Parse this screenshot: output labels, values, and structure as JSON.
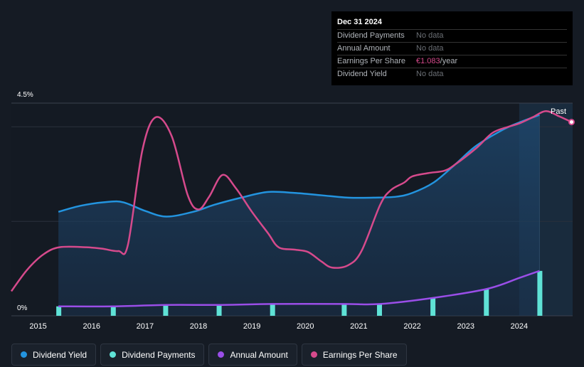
{
  "chart_data": {
    "type": "line",
    "title": "",
    "y_axis": {
      "max_label": "4.5%",
      "min_label": "0%",
      "ylim": [
        0,
        4.5
      ]
    },
    "x_ticks": [
      "2015",
      "2016",
      "2017",
      "2018",
      "2019",
      "2020",
      "2021",
      "2022",
      "2023",
      "2024"
    ],
    "xlim": [
      2014.5,
      2025.0
    ],
    "past_label": "Past",
    "past_start": 2024.0,
    "forecast_start": 2024.38,
    "series": [
      {
        "name": "Dividend Yield",
        "color": "#2394df",
        "kind": "area",
        "points": [
          [
            2015.38,
            2.2
          ],
          [
            2015.8,
            2.33
          ],
          [
            2016.3,
            2.41
          ],
          [
            2016.6,
            2.4
          ],
          [
            2017.0,
            2.22
          ],
          [
            2017.4,
            2.1
          ],
          [
            2017.9,
            2.2
          ],
          [
            2018.3,
            2.35
          ],
          [
            2018.8,
            2.5
          ],
          [
            2019.3,
            2.62
          ],
          [
            2019.8,
            2.6
          ],
          [
            2020.3,
            2.55
          ],
          [
            2020.8,
            2.5
          ],
          [
            2021.3,
            2.5
          ],
          [
            2021.7,
            2.52
          ],
          [
            2022.0,
            2.6
          ],
          [
            2022.4,
            2.82
          ],
          [
            2022.8,
            3.2
          ],
          [
            2023.2,
            3.6
          ],
          [
            2023.7,
            3.94
          ],
          [
            2024.0,
            4.09
          ],
          [
            2024.38,
            4.25
          ]
        ]
      },
      {
        "name": "Earnings Per Share",
        "color": "#d64a8c",
        "kind": "line",
        "points": [
          [
            2014.5,
            0.52
          ],
          [
            2014.8,
            0.98
          ],
          [
            2015.1,
            1.3
          ],
          [
            2015.4,
            1.45
          ],
          [
            2015.9,
            1.45
          ],
          [
            2016.2,
            1.42
          ],
          [
            2016.5,
            1.37
          ],
          [
            2016.68,
            1.5
          ],
          [
            2016.95,
            3.5
          ],
          [
            2017.2,
            4.2
          ],
          [
            2017.5,
            3.8
          ],
          [
            2017.8,
            2.55
          ],
          [
            2018.0,
            2.25
          ],
          [
            2018.2,
            2.52
          ],
          [
            2018.45,
            2.98
          ],
          [
            2018.7,
            2.7
          ],
          [
            2019.0,
            2.2
          ],
          [
            2019.3,
            1.75
          ],
          [
            2019.5,
            1.45
          ],
          [
            2019.8,
            1.4
          ],
          [
            2020.05,
            1.35
          ],
          [
            2020.3,
            1.15
          ],
          [
            2020.5,
            1.02
          ],
          [
            2020.8,
            1.07
          ],
          [
            2021.05,
            1.37
          ],
          [
            2021.4,
            2.35
          ],
          [
            2021.6,
            2.66
          ],
          [
            2021.85,
            2.82
          ],
          [
            2022.0,
            2.95
          ],
          [
            2022.3,
            3.02
          ],
          [
            2022.6,
            3.07
          ],
          [
            2022.8,
            3.2
          ],
          [
            2023.2,
            3.55
          ],
          [
            2023.5,
            3.87
          ],
          [
            2023.8,
            4.0
          ],
          [
            2024.0,
            4.07
          ],
          [
            2024.25,
            4.2
          ],
          [
            2024.5,
            4.33
          ],
          [
            2024.75,
            4.22
          ],
          [
            2024.98,
            4.1
          ]
        ]
      },
      {
        "name": "Annual Amount",
        "color": "#9a4ee8",
        "kind": "line",
        "points": [
          [
            2015.38,
            0.2
          ],
          [
            2016.4,
            0.2
          ],
          [
            2017.4,
            0.23
          ],
          [
            2018.4,
            0.23
          ],
          [
            2019.4,
            0.25
          ],
          [
            2020.7,
            0.25
          ],
          [
            2021.4,
            0.25
          ],
          [
            2022.4,
            0.38
          ],
          [
            2023.4,
            0.57
          ],
          [
            2024.0,
            0.8
          ],
          [
            2024.38,
            0.95
          ]
        ]
      },
      {
        "name": "Dividend Payments",
        "color": "#5fe2d6",
        "kind": "bar",
        "points": [
          [
            2015.38,
            0.2
          ],
          [
            2016.4,
            0.2
          ],
          [
            2017.38,
            0.23
          ],
          [
            2018.38,
            0.23
          ],
          [
            2019.38,
            0.25
          ],
          [
            2020.72,
            0.25
          ],
          [
            2021.38,
            0.25
          ],
          [
            2022.38,
            0.38
          ],
          [
            2023.38,
            0.57
          ],
          [
            2024.38,
            0.95
          ]
        ]
      }
    ]
  },
  "tooltip": {
    "date": "Dec 31 2024",
    "rows": [
      {
        "label": "Dividend Payments",
        "value": "No data"
      },
      {
        "label": "Annual Amount",
        "value": "No data"
      },
      {
        "label": "Earnings Per Share",
        "value": "€1.083",
        "unit": "/year"
      },
      {
        "label": "Dividend Yield",
        "value": "No data"
      }
    ]
  },
  "legend": [
    {
      "label": "Dividend Yield",
      "color": "#2394df"
    },
    {
      "label": "Dividend Payments",
      "color": "#5fe2d6"
    },
    {
      "label": "Annual Amount",
      "color": "#9a4ee8"
    },
    {
      "label": "Earnings Per Share",
      "color": "#d64a8c"
    }
  ]
}
